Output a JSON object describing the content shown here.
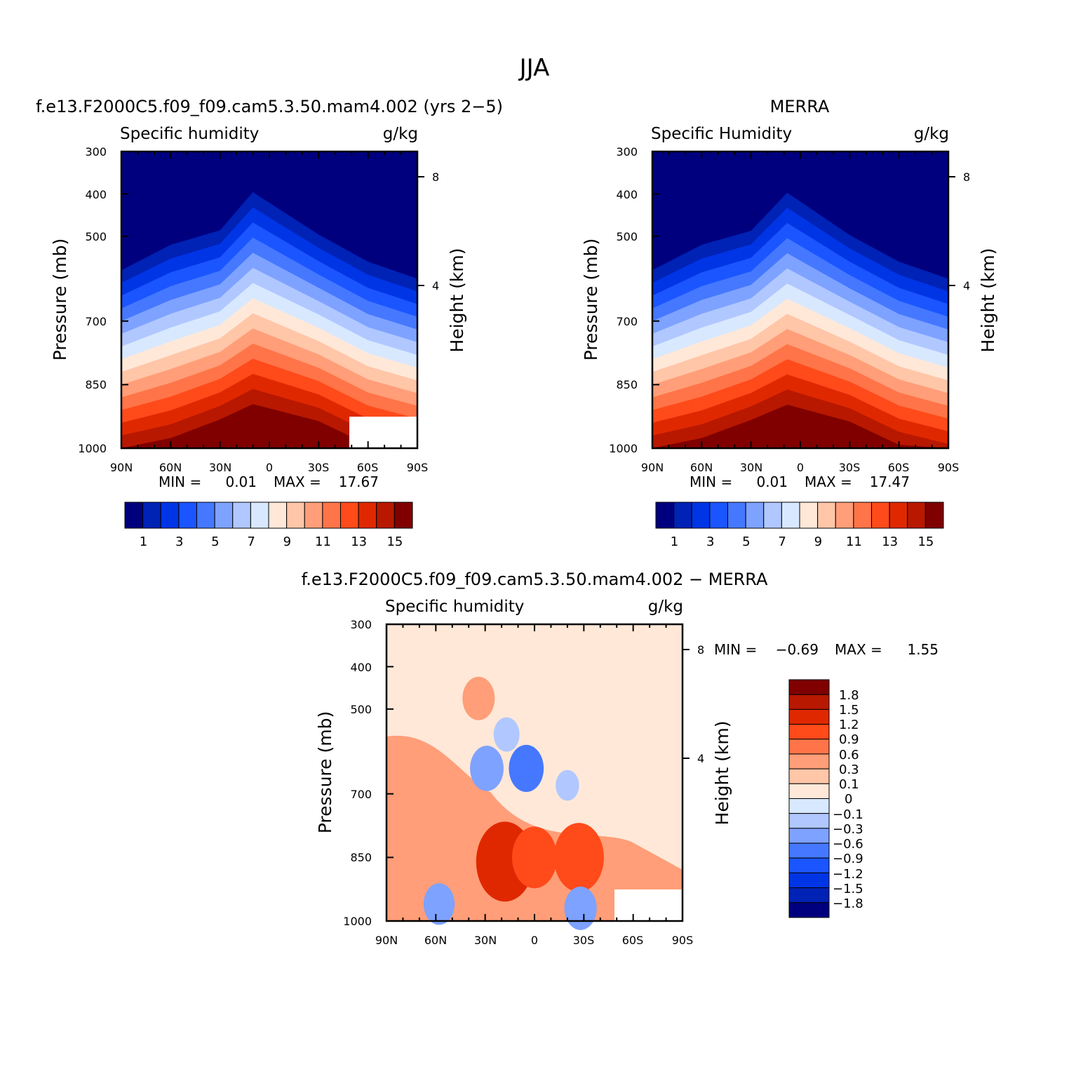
{
  "figure": {
    "title": "JJA"
  },
  "colors": {
    "q_palette": [
      "#00007f",
      "#0022b5",
      "#0035e6",
      "#1a55ff",
      "#4578ff",
      "#7ea2ff",
      "#b0c8ff",
      "#d8e8ff",
      "#ffe8d8",
      "#ffc6a8",
      "#ff9e78",
      "#ff7448",
      "#ff4a1a",
      "#e02800",
      "#b81800",
      "#800000"
    ],
    "diff_palette_bottom_to_top": [
      "#00007f",
      "#0022b5",
      "#0035e6",
      "#1a55ff",
      "#4578ff",
      "#7ea2ff",
      "#b0c8ff",
      "#d8e8ff",
      "#ffe8d8",
      "#ffc6a8",
      "#ff9e78",
      "#ff7448",
      "#ff4a1a",
      "#e02800",
      "#b81800",
      "#800000"
    ]
  },
  "chart_data": [
    {
      "id": "model",
      "type": "heatmap",
      "title": "f.e13.F2000C5.f09_f09.cam5.3.50.mam4.002 (yrs 2−5)",
      "left_string": "Specific humidity",
      "right_string": "g/kg",
      "ylabel": "Pressure (mb)",
      "ylabel2": "Height (km)",
      "x_ticks": [
        "90N",
        "60N",
        "30N",
        "0",
        "30S",
        "60S",
        "90S"
      ],
      "y_ticks": [
        "300",
        "400",
        "500",
        "700",
        "850",
        "1000"
      ],
      "y2_ticks": [
        "8",
        "4"
      ],
      "stats": {
        "min_label": "MIN =",
        "min": "0.01",
        "max_label": "MAX =",
        "max": "17.67"
      },
      "levels_labels": [
        "1",
        "3",
        "5",
        "7",
        "9",
        "11",
        "13",
        "15"
      ],
      "peak_value": 17.67,
      "peak_lat": 10,
      "missing_region": "60S-90S below 900 mb"
    },
    {
      "id": "obs",
      "type": "heatmap",
      "title": "MERRA",
      "left_string": "Specific Humidity",
      "right_string": "g/kg",
      "ylabel": "Pressure (mb)",
      "ylabel2": "Height (km)",
      "x_ticks": [
        "90N",
        "60N",
        "30N",
        "0",
        "30S",
        "60S",
        "90S"
      ],
      "y_ticks": [
        "300",
        "400",
        "500",
        "700",
        "850",
        "1000"
      ],
      "y2_ticks": [
        "8",
        "4"
      ],
      "stats": {
        "min_label": "MIN =",
        "min": "0.01",
        "max_label": "MAX =",
        "max": "17.47"
      },
      "levels_labels": [
        "1",
        "3",
        "5",
        "7",
        "9",
        "11",
        "13",
        "15"
      ],
      "peak_value": 17.47,
      "peak_lat": 8
    },
    {
      "id": "diff",
      "type": "heatmap",
      "title": "f.e13.F2000C5.f09_f09.cam5.3.50.mam4.002 − MERRA",
      "left_string": "Specific humidity",
      "right_string": "g/kg",
      "ylabel": "Pressure (mb)",
      "ylabel2": "Height (km)",
      "x_ticks": [
        "90N",
        "60N",
        "30N",
        "0",
        "30S",
        "60S",
        "90S"
      ],
      "y_ticks": [
        "300",
        "400",
        "500",
        "700",
        "850",
        "1000"
      ],
      "y2_ticks": [
        "8",
        "4"
      ],
      "stats": {
        "min_label": "MIN =",
        "min": "−0.69",
        "max_label": "MAX =",
        "max": "1.55"
      },
      "levels_labels": [
        "1.8",
        "1.5",
        "1.2",
        "0.9",
        "0.6",
        "0.3",
        "0.1",
        "0",
        "−0.1",
        "−0.3",
        "−0.6",
        "−0.9",
        "−1.2",
        "−1.5",
        "−1.8"
      ],
      "anomalies": [
        {
          "lat": 29,
          "p": 640,
          "value": -0.55
        },
        {
          "lat": 5,
          "p": 640,
          "value": -0.6
        },
        {
          "lat": 17,
          "p": 560,
          "value": -0.25
        },
        {
          "lat": 18,
          "p": 860,
          "value": 1.5
        },
        {
          "lat": 0,
          "p": 850,
          "value": 1.0
        },
        {
          "lat": -27,
          "p": 850,
          "value": 1.2
        },
        {
          "lat": 34,
          "p": 475,
          "value": 0.5
        },
        {
          "lat": 58,
          "p": 960,
          "value": -0.45
        },
        {
          "lat": -28,
          "p": 970,
          "value": -0.5
        },
        {
          "lat": -20,
          "p": 680,
          "value": -0.15
        }
      ]
    }
  ]
}
